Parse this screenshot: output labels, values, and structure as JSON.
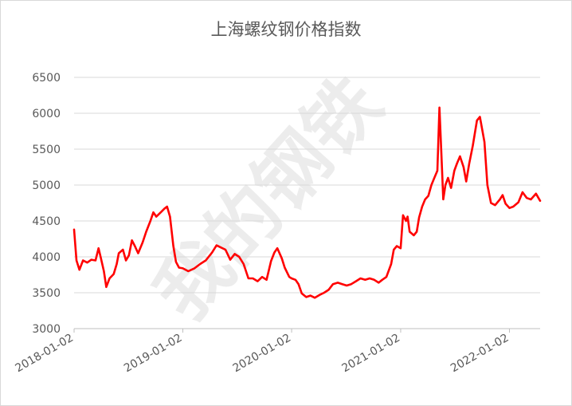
{
  "chart_data": {
    "type": "line",
    "title": "上海螺纹钢价格指数",
    "xlabel": "",
    "ylabel": "",
    "ylim": [
      3000,
      6500
    ],
    "yticks": [
      "3000",
      "3500",
      "4000",
      "4500",
      "5000",
      "5500",
      "6000",
      "6500"
    ],
    "xticks": [
      "2018-01-02",
      "2019-01-02",
      "2020-01-02",
      "2021-01-02",
      "2022-01-02"
    ],
    "xlim": [
      "2018-01-02",
      "2022-04-15"
    ],
    "grid": true,
    "watermark": "我的钢铁",
    "series": [
      {
        "color": "#ff0000",
        "points": [
          [
            "2018-01-02",
            4380
          ],
          [
            "2018-01-10",
            3950
          ],
          [
            "2018-01-20",
            3820
          ],
          [
            "2018-02-01",
            3950
          ],
          [
            "2018-02-15",
            3920
          ],
          [
            "2018-03-01",
            3960
          ],
          [
            "2018-03-15",
            3950
          ],
          [
            "2018-03-25",
            4120
          ],
          [
            "2018-04-02",
            3980
          ],
          [
            "2018-04-12",
            3800
          ],
          [
            "2018-04-20",
            3580
          ],
          [
            "2018-05-01",
            3700
          ],
          [
            "2018-05-15",
            3760
          ],
          [
            "2018-05-25",
            3900
          ],
          [
            "2018-06-01",
            4050
          ],
          [
            "2018-06-15",
            4100
          ],
          [
            "2018-06-25",
            3950
          ],
          [
            "2018-07-05",
            4020
          ],
          [
            "2018-07-15",
            4230
          ],
          [
            "2018-07-25",
            4150
          ],
          [
            "2018-08-05",
            4050
          ],
          [
            "2018-08-20",
            4200
          ],
          [
            "2018-09-01",
            4350
          ],
          [
            "2018-09-15",
            4500
          ],
          [
            "2018-09-25",
            4620
          ],
          [
            "2018-10-05",
            4560
          ],
          [
            "2018-10-20",
            4620
          ],
          [
            "2018-11-01",
            4670
          ],
          [
            "2018-11-10",
            4700
          ],
          [
            "2018-11-20",
            4560
          ],
          [
            "2018-12-01",
            4150
          ],
          [
            "2018-12-10",
            3930
          ],
          [
            "2018-12-20",
            3850
          ],
          [
            "2019-01-02",
            3840
          ],
          [
            "2019-01-20",
            3800
          ],
          [
            "2019-02-10",
            3840
          ],
          [
            "2019-03-01",
            3900
          ],
          [
            "2019-03-20",
            3950
          ],
          [
            "2019-04-10",
            4060
          ],
          [
            "2019-04-25",
            4160
          ],
          [
            "2019-05-10",
            4130
          ],
          [
            "2019-05-25",
            4100
          ],
          [
            "2019-06-10",
            3960
          ],
          [
            "2019-06-25",
            4040
          ],
          [
            "2019-07-10",
            4000
          ],
          [
            "2019-07-25",
            3900
          ],
          [
            "2019-08-10",
            3700
          ],
          [
            "2019-08-25",
            3700
          ],
          [
            "2019-09-10",
            3660
          ],
          [
            "2019-09-25",
            3720
          ],
          [
            "2019-10-10",
            3680
          ],
          [
            "2019-10-25",
            3940
          ],
          [
            "2019-11-05",
            4060
          ],
          [
            "2019-11-15",
            4120
          ],
          [
            "2019-11-30",
            3980
          ],
          [
            "2019-12-10",
            3850
          ],
          [
            "2019-12-25",
            3720
          ],
          [
            "2020-01-02",
            3700
          ],
          [
            "2020-01-15",
            3680
          ],
          [
            "2020-01-25",
            3620
          ],
          [
            "2020-02-05",
            3490
          ],
          [
            "2020-02-20",
            3440
          ],
          [
            "2020-03-05",
            3460
          ],
          [
            "2020-03-20",
            3430
          ],
          [
            "2020-04-05",
            3470
          ],
          [
            "2020-04-20",
            3500
          ],
          [
            "2020-05-05",
            3540
          ],
          [
            "2020-05-20",
            3620
          ],
          [
            "2020-06-05",
            3640
          ],
          [
            "2020-06-20",
            3620
          ],
          [
            "2020-07-05",
            3600
          ],
          [
            "2020-07-20",
            3620
          ],
          [
            "2020-08-05",
            3660
          ],
          [
            "2020-08-20",
            3700
          ],
          [
            "2020-09-05",
            3680
          ],
          [
            "2020-09-20",
            3700
          ],
          [
            "2020-10-05",
            3680
          ],
          [
            "2020-10-20",
            3640
          ],
          [
            "2020-11-01",
            3680
          ],
          [
            "2020-11-15",
            3720
          ],
          [
            "2020-12-01",
            3900
          ],
          [
            "2020-12-10",
            4100
          ],
          [
            "2020-12-20",
            4150
          ],
          [
            "2021-01-02",
            4120
          ],
          [
            "2021-01-10",
            4580
          ],
          [
            "2021-01-20",
            4500
          ],
          [
            "2021-01-25",
            4560
          ],
          [
            "2021-02-01",
            4350
          ],
          [
            "2021-02-15",
            4300
          ],
          [
            "2021-02-25",
            4350
          ],
          [
            "2021-03-05",
            4550
          ],
          [
            "2021-03-15",
            4700
          ],
          [
            "2021-03-25",
            4800
          ],
          [
            "2021-04-05",
            4850
          ],
          [
            "2021-04-15",
            5000
          ],
          [
            "2021-04-25",
            5100
          ],
          [
            "2021-05-05",
            5200
          ],
          [
            "2021-05-12",
            6080
          ],
          [
            "2021-05-18",
            5500
          ],
          [
            "2021-05-25",
            4800
          ],
          [
            "2021-06-01",
            5000
          ],
          [
            "2021-06-10",
            5100
          ],
          [
            "2021-06-20",
            4960
          ],
          [
            "2021-07-01",
            5200
          ],
          [
            "2021-07-10",
            5300
          ],
          [
            "2021-07-20",
            5400
          ],
          [
            "2021-08-01",
            5250
          ],
          [
            "2021-08-10",
            5050
          ],
          [
            "2021-08-20",
            5300
          ],
          [
            "2021-09-01",
            5550
          ],
          [
            "2021-09-15",
            5900
          ],
          [
            "2021-09-25",
            5950
          ],
          [
            "2021-10-10",
            5600
          ],
          [
            "2021-10-20",
            5000
          ],
          [
            "2021-11-01",
            4750
          ],
          [
            "2021-11-15",
            4720
          ],
          [
            "2021-12-01",
            4800
          ],
          [
            "2021-12-10",
            4860
          ],
          [
            "2021-12-20",
            4740
          ],
          [
            "2022-01-02",
            4680
          ],
          [
            "2022-01-15",
            4700
          ],
          [
            "2022-02-01",
            4760
          ],
          [
            "2022-02-15",
            4900
          ],
          [
            "2022-03-01",
            4820
          ],
          [
            "2022-03-15",
            4800
          ],
          [
            "2022-04-01",
            4880
          ],
          [
            "2022-04-15",
            4780
          ]
        ]
      }
    ]
  }
}
